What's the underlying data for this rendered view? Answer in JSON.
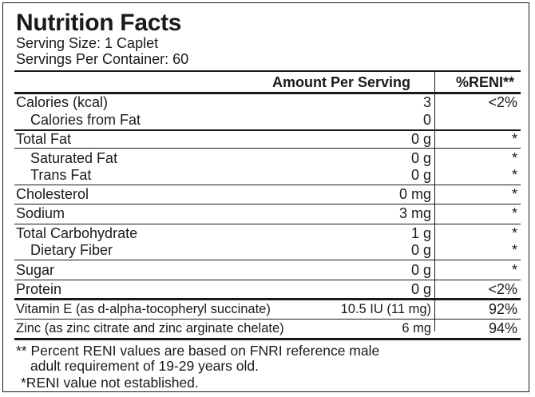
{
  "title": "Nutrition Facts",
  "serving_size": "Serving Size: 1 Caplet",
  "servings_per_container": "Servings Per Container: 60",
  "header": {
    "amount": "Amount Per Serving",
    "percent": "%RENI**"
  },
  "rows": [
    {
      "name": "Calories (kcal)",
      "amount": "3",
      "percent": "<2%"
    },
    {
      "name": "Calories from Fat",
      "amount": "0",
      "percent": ""
    },
    {
      "name": "Total Fat",
      "amount": "0 g",
      "percent": "*"
    },
    {
      "name": "Saturated Fat",
      "amount": "0 g",
      "percent": "*"
    },
    {
      "name": "Trans Fat",
      "amount": "0 g",
      "percent": "*"
    },
    {
      "name": "Cholesterol",
      "amount": "0 mg",
      "percent": "*"
    },
    {
      "name": "Sodium",
      "amount": "3 mg",
      "percent": "*"
    },
    {
      "name": "Total Carbohydrate",
      "amount": "1 g",
      "percent": "*"
    },
    {
      "name": "Dietary Fiber",
      "amount": "0 g",
      "percent": "*"
    },
    {
      "name": "Sugar",
      "amount": "0 g",
      "percent": "*"
    },
    {
      "name": "Protein",
      "amount": "0 g",
      "percent": "<2%"
    },
    {
      "name": "Vitamin E (as d-alpha-tocopheryl succinate)",
      "amount": "10.5 IU (11 mg)",
      "percent": "92%"
    },
    {
      "name": "Zinc (as zinc citrate and zinc arginate chelate)",
      "amount": "6 mg",
      "percent": "94%"
    }
  ],
  "footnotes": {
    "reni_line1": "** Percent RENI values are based on FNRI reference male",
    "reni_line2": "adult requirement of 19-29 years old.",
    "not_established": "*RENI value not established."
  }
}
